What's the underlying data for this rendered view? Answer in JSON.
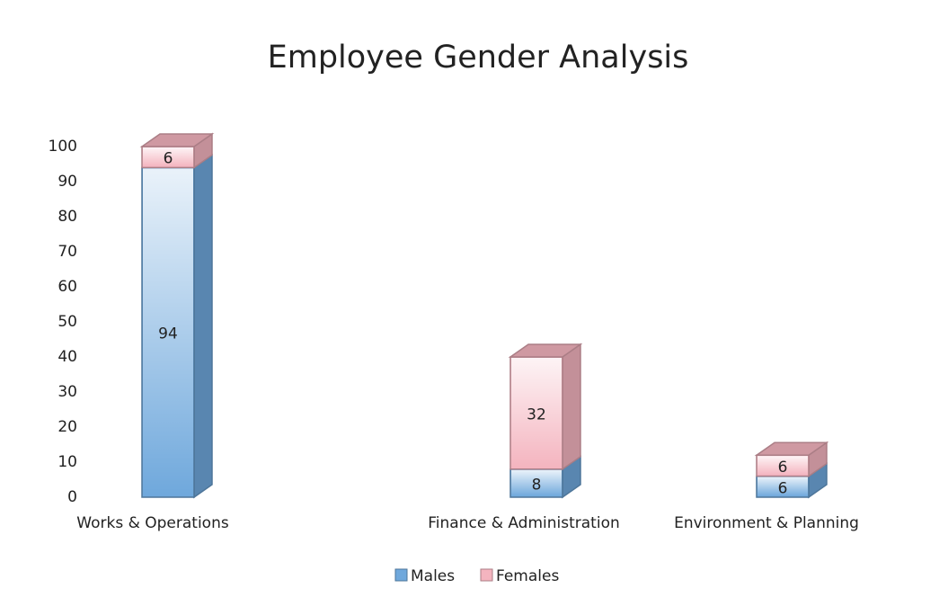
{
  "chart_data": {
    "type": "stacked_bar_3d",
    "title": "Employee Gender Analysis",
    "categories": [
      "Works & Operations",
      "Finance & Administration",
      "Environment & Planning"
    ],
    "series": [
      {
        "name": "Males",
        "color": "#6fa8dc",
        "values": [
          94,
          8,
          6
        ]
      },
      {
        "name": "Females",
        "color": "#f4b4bf",
        "values": [
          6,
          32,
          6
        ]
      }
    ],
    "ylim": [
      0,
      100
    ],
    "yticks": [
      0,
      10,
      20,
      30,
      40,
      50,
      60,
      70,
      80,
      90,
      100
    ],
    "legend": "bottom"
  }
}
